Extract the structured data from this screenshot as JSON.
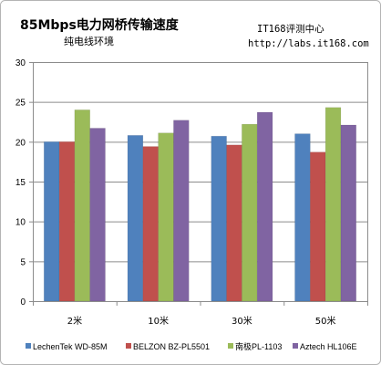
{
  "header": {
    "source": "IT168评测中心",
    "url": "http://labs.it168.com"
  },
  "chart_data": {
    "type": "bar",
    "title": "85Mbps电力网桥传输速度",
    "subtitle": "纯电线环境",
    "xlabel": "",
    "ylabel": "",
    "categories": [
      "2米",
      "10米",
      "30米",
      "50米"
    ],
    "series": [
      {
        "name": "LechenTek WD-85M",
        "color": "#4f81bd",
        "values": [
          20.0,
          20.8,
          20.7,
          21.0
        ]
      },
      {
        "name": "BELZON BZ-PL5501",
        "color": "#c0504d",
        "values": [
          20.0,
          19.4,
          19.6,
          18.7
        ]
      },
      {
        "name": "南极PL-1103",
        "color": "#9bbb59",
        "values": [
          24.0,
          21.1,
          22.2,
          24.3
        ]
      },
      {
        "name": "Aztech HL106E",
        "color": "#8064a2",
        "values": [
          21.7,
          22.7,
          23.7,
          22.1
        ]
      }
    ],
    "ylim": [
      0,
      30
    ],
    "yticks": [
      0,
      5,
      10,
      15,
      20,
      25,
      30
    ],
    "grid": true,
    "legend": "bottom"
  }
}
